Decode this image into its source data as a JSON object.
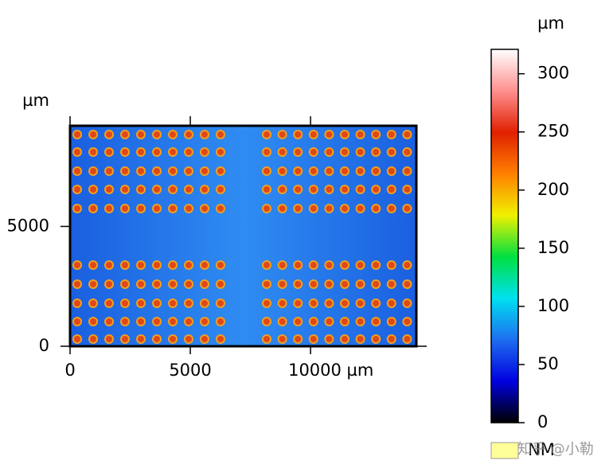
{
  "chart_data": {
    "type": "surface-map",
    "x_unit_label": "µm",
    "y_axis_label": "µm",
    "xlim": [
      0,
      14400
    ],
    "ylim": [
      0,
      9200
    ],
    "xticks": [
      0,
      5000,
      {
        "value": 10000,
        "label": "10000 µm"
      }
    ],
    "yticks": [
      0,
      5000
    ],
    "colorbar": {
      "label": "µm",
      "lim": [
        0,
        321
      ],
      "ticks": [
        0,
        50,
        100,
        150,
        200,
        250,
        300
      ],
      "colors": [
        "#000000",
        "#0000e0",
        "#1e6ef0",
        "#00e0f0",
        "#00e040",
        "#f0f000",
        "#ff8000",
        "#e02000",
        "#ff9090",
        "#ffffff"
      ]
    },
    "legend": {
      "label": "NM",
      "color": "#ffff99"
    },
    "watermark": "知乎 @小勒"
  }
}
